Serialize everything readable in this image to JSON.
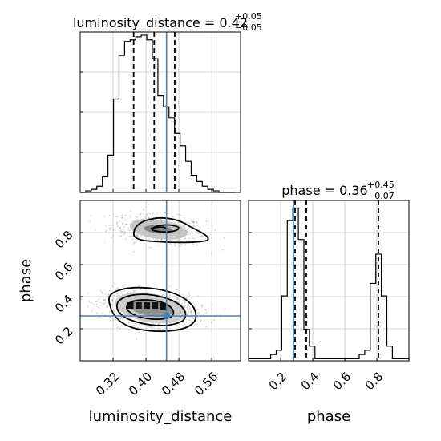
{
  "chart_data": {
    "type": "corner",
    "parameters": [
      "luminosity_distance",
      "phase"
    ],
    "truths": {
      "luminosity_distance": 0.45,
      "phase": 0.28
    },
    "panels": [
      {
        "id": "hist_luminosity_distance",
        "type": "histogram",
        "parameter": "luminosity_distance",
        "title_main": "luminosity_distance = 0.42",
        "title_plus": "+0.05",
        "title_minus": "−0.05",
        "xlim": [
          0.24,
          0.63
        ],
        "bin_edges": [
          0.24,
          0.2535,
          0.267,
          0.2805,
          0.294,
          0.3075,
          0.321,
          0.3345,
          0.348,
          0.3615,
          0.375,
          0.3885,
          0.402,
          0.4155,
          0.429,
          0.4425,
          0.456,
          0.4695,
          0.483,
          0.4965,
          0.51,
          0.5235,
          0.537,
          0.5505,
          0.564,
          0.5775,
          0.591,
          0.6045,
          0.618
        ],
        "counts": [
          0,
          1,
          2,
          4,
          10,
          24,
          60,
          88,
          97,
          98,
          100,
          101,
          98,
          86,
          62,
          55,
          48,
          38,
          30,
          20,
          11,
          7,
          4,
          2,
          1,
          0,
          0,
          0
        ],
        "quantiles": [
          0.37,
          0.42,
          0.47
        ],
        "truth": 0.45,
        "xticks": [
          0.32,
          0.4,
          0.48,
          0.56
        ]
      },
      {
        "id": "hist_phase",
        "type": "histogram",
        "parameter": "phase",
        "title_main": "phase = 0.36",
        "title_plus": "+0.45",
        "title_minus": "−0.07",
        "xlim": [
          0.0,
          1.0
        ],
        "bin_edges": [
          0.0,
          0.0345,
          0.069,
          0.1035,
          0.138,
          0.1725,
          0.207,
          0.2415,
          0.276,
          0.3105,
          0.345,
          0.3795,
          0.414,
          0.4485,
          0.483,
          0.5175,
          0.552,
          0.5865,
          0.621,
          0.6555,
          0.69,
          0.7245,
          0.759,
          0.7935,
          0.828,
          0.8625,
          0.897,
          0.9315,
          0.966,
          1.0
        ],
        "counts": [
          1,
          1,
          1,
          1,
          3,
          5,
          31,
          67,
          73,
          58,
          15,
          7,
          1,
          1,
          1,
          1,
          1,
          1,
          1,
          1,
          3,
          5,
          37,
          51,
          31,
          7,
          1,
          1,
          1
        ],
        "quantiles": [
          0.29,
          0.36,
          0.81
        ],
        "truth": 0.28,
        "xticks": [
          0.2,
          0.4,
          0.6,
          0.8
        ]
      },
      {
        "id": "scatter_luminosity_distance_phase",
        "type": "2d_density",
        "x_parameter": "luminosity_distance",
        "y_parameter": "phase",
        "xlim": [
          0.24,
          0.63
        ],
        "ylim": [
          0.0,
          1.0
        ],
        "truth": [
          0.45,
          0.28
        ],
        "blobs": [
          {
            "cx": 0.43,
            "cy": 0.82,
            "sx": 0.05,
            "sy": 0.045,
            "weight": 0.35
          },
          {
            "cx": 0.41,
            "cy": 0.33,
            "sx": 0.05,
            "sy": 0.05,
            "weight": 0.65
          }
        ],
        "xticks": [
          0.32,
          0.4,
          0.48,
          0.56
        ],
        "yticks": [
          0.2,
          0.4,
          0.6,
          0.8
        ]
      }
    ],
    "xlabel_left": "luminosity_distance",
    "xlabel_right": "phase",
    "ylabel": "phase",
    "truth_color": "#4682b4",
    "grid": true
  }
}
